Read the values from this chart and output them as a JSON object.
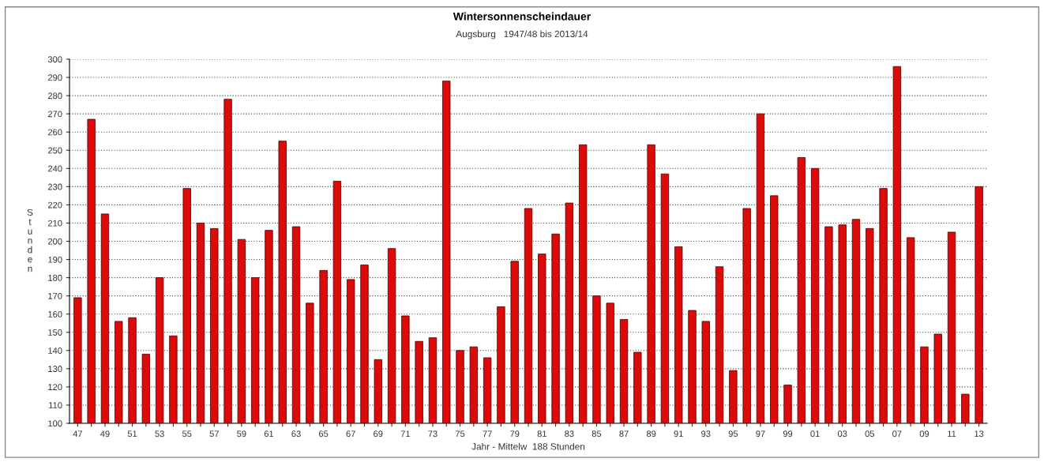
{
  "chart_data": {
    "type": "bar",
    "title": "Wintersonnenscheindauer",
    "subtitle": "Augsburg   1947/48 bis 2013/14",
    "xlabel": "Jahr - Mittelw  188 Stunden",
    "ylabel": "Stunden",
    "categories": [
      "47",
      null,
      "49",
      null,
      "51",
      null,
      "53",
      null,
      "55",
      null,
      "57",
      null,
      "59",
      null,
      "61",
      null,
      "63",
      null,
      "65",
      null,
      "67",
      null,
      "69",
      null,
      "71",
      null,
      "73",
      null,
      "75",
      null,
      "77",
      null,
      "79",
      null,
      "81",
      null,
      "83",
      null,
      "85",
      null,
      "87",
      null,
      "89",
      null,
      "91",
      null,
      "93",
      null,
      "95",
      null,
      "97",
      null,
      "99",
      null,
      "01",
      null,
      "03",
      null,
      "05",
      null,
      "07",
      null,
      "09",
      null,
      "11",
      null,
      "13"
    ],
    "values": [
      169,
      267,
      215,
      156,
      158,
      138,
      180,
      148,
      229,
      210,
      207,
      278,
      201,
      180,
      206,
      255,
      208,
      166,
      184,
      233,
      179,
      187,
      135,
      196,
      159,
      145,
      147,
      288,
      140,
      142,
      136,
      164,
      189,
      218,
      193,
      204,
      221,
      253,
      170,
      166,
      157,
      139,
      253,
      237,
      197,
      162,
      156,
      186,
      129,
      218,
      270,
      225,
      121,
      246,
      240,
      208,
      209,
      212,
      207,
      229,
      296,
      202,
      142,
      149,
      205,
      116,
      230
    ],
    "color": "#dd0a0a",
    "ylim": [
      100,
      300
    ],
    "yticks": [
      100,
      110,
      120,
      130,
      140,
      150,
      160,
      170,
      180,
      190,
      200,
      210,
      220,
      230,
      240,
      250,
      260,
      270,
      280,
      290,
      300
    ],
    "grid": "y"
  }
}
